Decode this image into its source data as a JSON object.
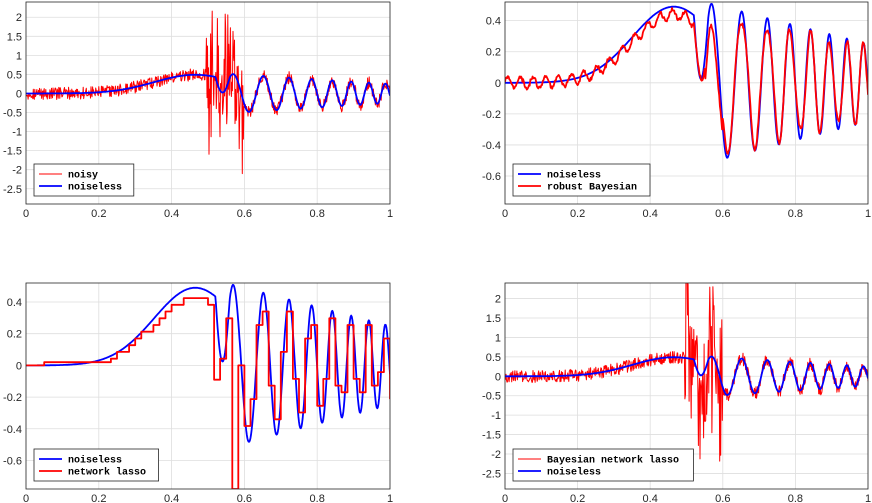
{
  "colors": {
    "noisy_red": "#ff0000",
    "noiseless_blue": "#0000ff",
    "grid": "#dedede",
    "axes": "#262626"
  },
  "chart_data": [
    {
      "type": "line",
      "xlim": [
        0,
        1
      ],
      "ylim": [
        -2.9,
        2.4
      ],
      "xticks": [
        "0",
        "0.2",
        "0.4",
        "0.6",
        "0.8",
        "1"
      ],
      "yticks": [
        "2",
        "1.5",
        "1",
        "0.5",
        "0",
        "-0.5",
        "-1",
        "-1.5",
        "-2",
        "-2.5"
      ],
      "grid": true,
      "legend_position": "bottom-left",
      "series": [
        {
          "name": "noisy",
          "color": "#ff0000",
          "style": "noisy-burst",
          "width": 1.0
        },
        {
          "name": "noiseless",
          "color": "#0000ff",
          "style": "smooth",
          "width": 1.8
        }
      ]
    },
    {
      "type": "line",
      "xlim": [
        0,
        1
      ],
      "ylim": [
        -0.78,
        0.52
      ],
      "xticks": [
        "0",
        "0.2",
        "0.4",
        "0.6",
        "0.8",
        "1"
      ],
      "yticks": [
        "0.4",
        "0.2",
        "0",
        "-0.2",
        "-0.4",
        "-0.6"
      ],
      "grid": true,
      "legend_position": "bottom-left",
      "series": [
        {
          "name": "noiseless",
          "color": "#0000ff",
          "style": "smooth",
          "width": 1.8
        },
        {
          "name": "robust Bayesian",
          "color": "#ff0000",
          "style": "wiggly",
          "width": 1.8
        }
      ]
    },
    {
      "type": "line",
      "xlim": [
        0,
        1
      ],
      "ylim": [
        -0.78,
        0.52
      ],
      "xticks": [
        "0",
        "0.2",
        "0.4",
        "0.6",
        "0.8",
        "1"
      ],
      "yticks": [
        "0.4",
        "0.2",
        "0",
        "-0.2",
        "-0.4",
        "-0.6"
      ],
      "grid": true,
      "legend_position": "bottom-left",
      "series": [
        {
          "name": "noiseless",
          "color": "#0000ff",
          "style": "smooth",
          "width": 1.8
        },
        {
          "name": "network lasso",
          "color": "#ff0000",
          "style": "step",
          "width": 1.8
        }
      ]
    },
    {
      "type": "line",
      "xlim": [
        0,
        1
      ],
      "ylim": [
        -2.9,
        2.4
      ],
      "xticks": [
        "0",
        "0.2",
        "0.4",
        "0.6",
        "0.8",
        "1"
      ],
      "yticks": [
        "2",
        "1.5",
        "1",
        "0.5",
        "0",
        "-0.5",
        "-1",
        "-1.5",
        "-2",
        "-2.5"
      ],
      "grid": true,
      "legend_position": "bottom-left",
      "series": [
        {
          "name": "Bayesian network lasso",
          "color": "#ff0000",
          "style": "noisy-burst",
          "width": 1.0
        },
        {
          "name": "noiseless",
          "color": "#0000ff",
          "style": "smooth",
          "width": 1.8
        }
      ]
    }
  ]
}
